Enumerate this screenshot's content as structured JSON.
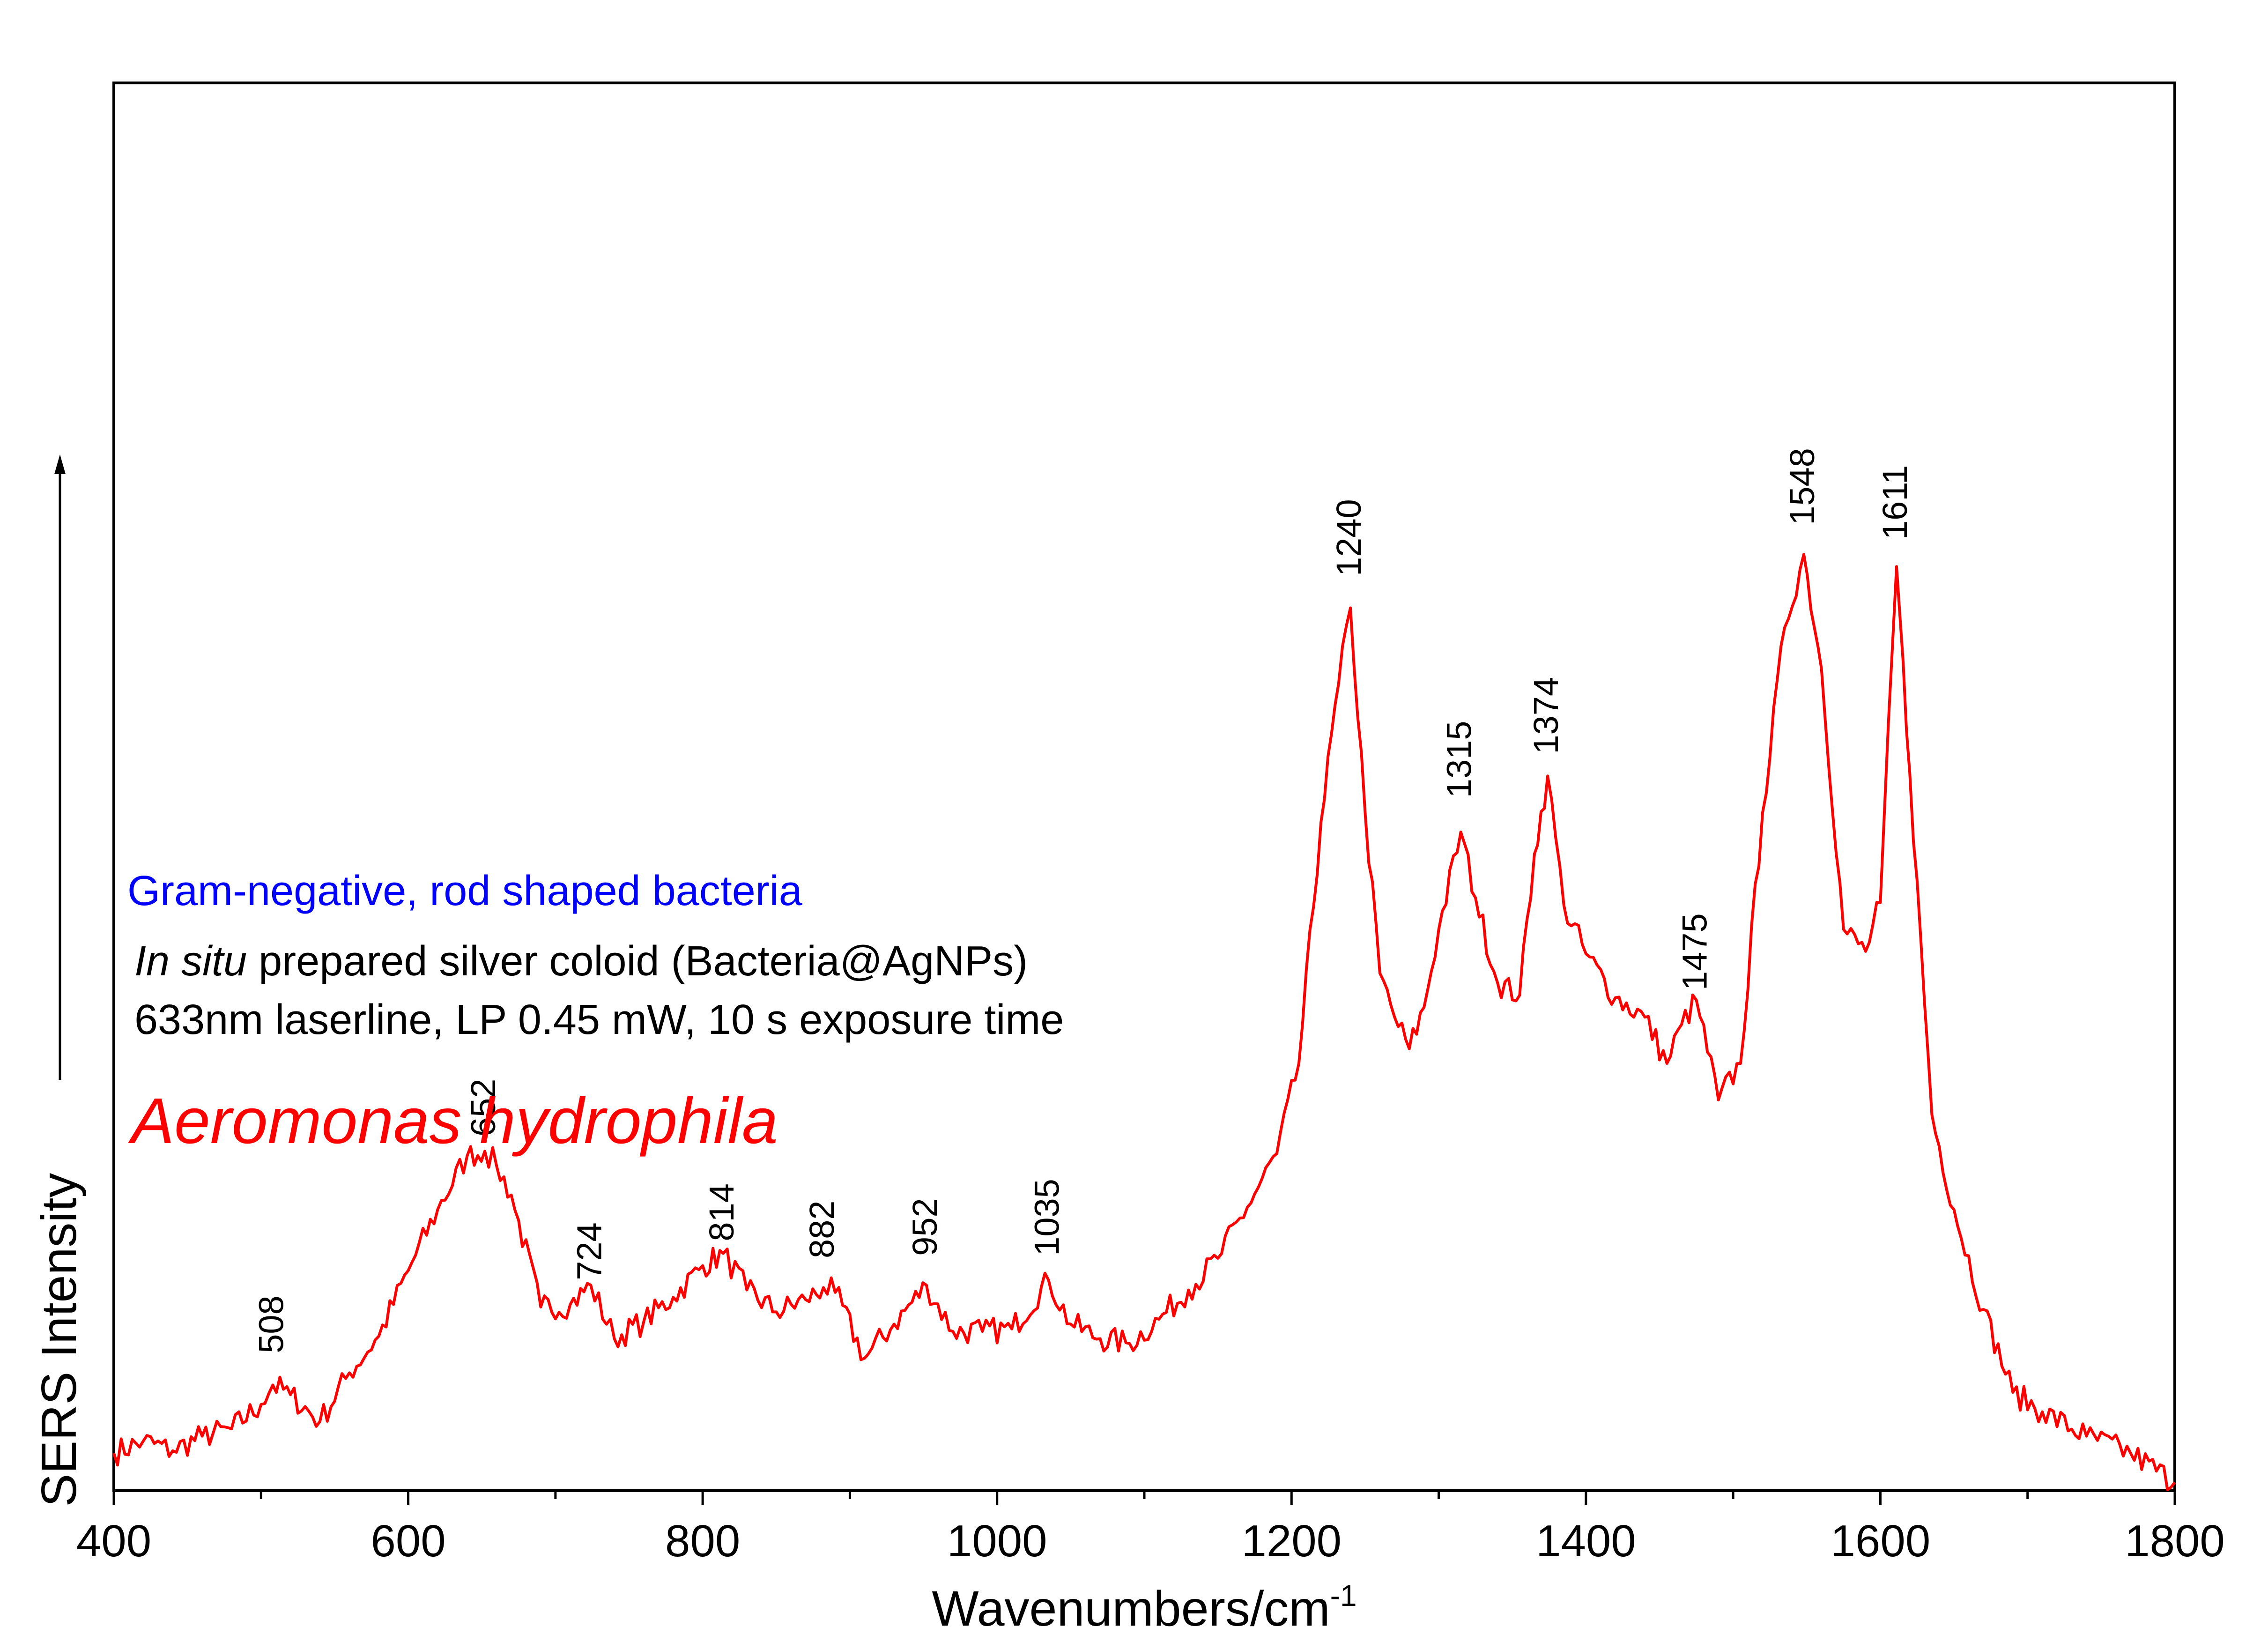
{
  "chart_data": {
    "type": "line",
    "xlabel": "Wavenumbers/cm",
    "xlabel_superscript": "-1",
    "ylabel": "SERS Intensity",
    "xlim": [
      400,
      1800
    ],
    "ylim": [
      0,
      100
    ],
    "x_ticks": [
      "400",
      "600",
      "800",
      "1000",
      "1200",
      "1400",
      "1600",
      "1800"
    ],
    "x_minor_step": 100,
    "y_ticks_shown": false,
    "grid": false,
    "line_color": "#ff0000",
    "annotations": {
      "line1": "Gram-negative, rod shaped bacteria",
      "line1_color": "#0000ff",
      "line2_italic": "In situ",
      "line2_rest": " prepared silver coloid (Bacteria@AgNPs)",
      "line3": "633nm laserline, LP 0.45 mW, 10 s exposure time",
      "sample_name": "Aeromonas hydrophila",
      "sample_color": "#ff0000"
    },
    "peak_labels": [
      {
        "label": "508",
        "x": 508,
        "y": 5.6
      },
      {
        "label": "652",
        "x": 652,
        "y": 14.5
      },
      {
        "label": "724",
        "x": 724,
        "y": 8.6
      },
      {
        "label": "814",
        "x": 814,
        "y": 10.2
      },
      {
        "label": "882",
        "x": 882,
        "y": 9.5
      },
      {
        "label": "952",
        "x": 952,
        "y": 9.6
      },
      {
        "label": "1035",
        "x": 1035,
        "y": 9.6
      },
      {
        "label": "1240",
        "x": 1240,
        "y": 37.5
      },
      {
        "label": "1315",
        "x": 1315,
        "y": 28.4
      },
      {
        "label": "1374",
        "x": 1374,
        "y": 30.2
      },
      {
        "label": "1475",
        "x": 1475,
        "y": 20.5
      },
      {
        "label": "1548",
        "x": 1548,
        "y": 39.6
      },
      {
        "label": "1611",
        "x": 1611,
        "y": 39.0
      }
    ],
    "series": [
      {
        "x": [
          400,
          420,
          440,
          460,
          480,
          500,
          508,
          520,
          540,
          560,
          580,
          600,
          620,
          640,
          652,
          660,
          670,
          690,
          710,
          724,
          740,
          760,
          780,
          800,
          814,
          830,
          850,
          870,
          882,
          890,
          910,
          930,
          952,
          970,
          990,
          1010,
          1035,
          1050,
          1070,
          1090,
          1110,
          1130,
          1150,
          1170,
          1190,
          1205,
          1220,
          1232,
          1240,
          1250,
          1260,
          1270,
          1280,
          1290,
          1300,
          1315,
          1325,
          1340,
          1355,
          1365,
          1374,
          1385,
          1400,
          1420,
          1440,
          1455,
          1465,
          1475,
          1490,
          1505,
          1520,
          1535,
          1548,
          1560,
          1575,
          1590,
          1600,
          1611,
          1620,
          1635,
          1650,
          1670,
          1690,
          1710,
          1740,
          1770,
          1800
        ],
        "y": [
          1.5,
          2.0,
          1.6,
          2.2,
          2.5,
          3.5,
          4.3,
          3.9,
          2.8,
          4.8,
          6.3,
          9.0,
          11.5,
          13.7,
          13.9,
          13.3,
          12.1,
          7.5,
          7.6,
          8.4,
          6.2,
          6.9,
          7.9,
          9.2,
          9.7,
          8.2,
          7.3,
          7.8,
          8.3,
          8.1,
          5.4,
          6.8,
          8.4,
          6.5,
          6.5,
          6.6,
          8.6,
          6.8,
          6.2,
          6.0,
          7.0,
          8.2,
          9.5,
          11.6,
          13.8,
          17.5,
          27.4,
          33.1,
          36.2,
          27.8,
          21.2,
          19.4,
          18.1,
          19.8,
          23.0,
          27.0,
          24.3,
          20.8,
          20.3,
          26.1,
          29.3,
          24.0,
          22.0,
          20.2,
          19.4,
          17.5,
          19.1,
          20.1,
          16.0,
          17.5,
          27.8,
          35.4,
          38.4,
          33.7,
          23.0,
          22.1,
          24.1,
          37.9,
          29.4,
          15.4,
          11.5,
          7.4,
          4.0,
          3.2,
          2.2,
          1.5,
          0.3
        ]
      }
    ]
  }
}
